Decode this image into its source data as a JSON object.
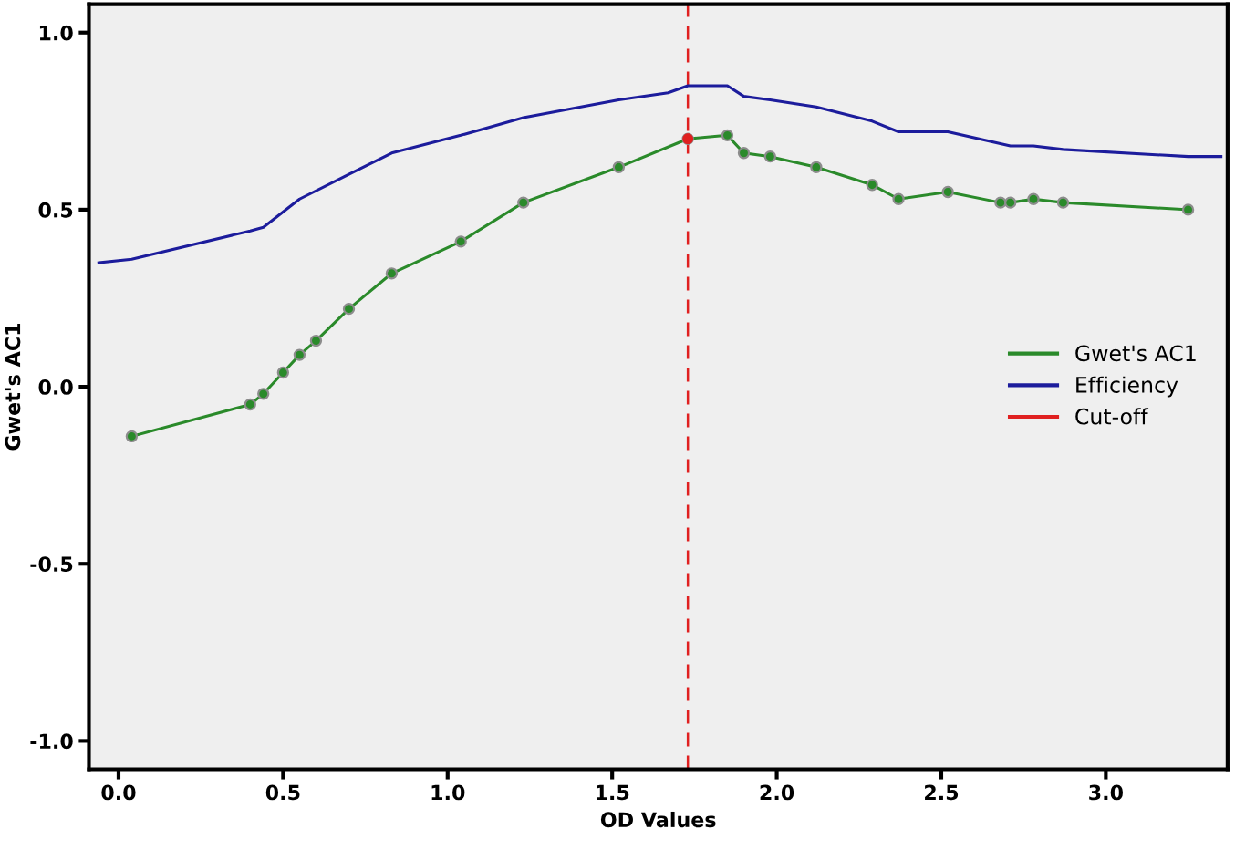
{
  "chart_data": {
    "type": "line",
    "xlabel": "OD Values",
    "ylabel": "Gwet's AC1",
    "xlim": [
      -0.09,
      3.37
    ],
    "ylim": [
      -1.08,
      1.08
    ],
    "xticks": [
      {
        "value": 0,
        "label": "0.0"
      },
      0.5,
      {
        "value": 1,
        "label": "1.0"
      },
      1.5,
      {
        "value": 2,
        "label": "2.0"
      },
      2.5,
      {
        "value": 3,
        "label": "3.0"
      }
    ],
    "yticks": [
      {
        "value": -1,
        "label": "-1.0"
      },
      -0.5,
      {
        "value": 0,
        "label": "0.0"
      },
      0.5,
      {
        "value": 1,
        "label": "1.0"
      }
    ],
    "grid": false,
    "legend": "right",
    "series": [
      {
        "name": "Gwet's AC1",
        "color": "#2a8a2a",
        "marker": "circle",
        "x": [
          0.04,
          0.4,
          0.44,
          0.5,
          0.55,
          0.6,
          0.7,
          0.83,
          1.04,
          1.23,
          1.52,
          1.73,
          1.85,
          1.9,
          1.98,
          2.12,
          2.29,
          2.37,
          2.52,
          2.68,
          2.71,
          2.78,
          2.87,
          3.25
        ],
        "values": [
          -0.14,
          -0.05,
          -0.02,
          0.04,
          0.09,
          0.13,
          0.22,
          0.32,
          0.41,
          0.52,
          0.62,
          0.7,
          0.71,
          0.66,
          0.65,
          0.62,
          0.57,
          0.53,
          0.55,
          0.52,
          0.52,
          0.53,
          0.52,
          0.5
        ]
      },
      {
        "name": "Efficiency",
        "color": "#1c1c9c",
        "marker": "none",
        "x": [
          -0.06,
          0.04,
          0.4,
          0.44,
          0.55,
          0.7,
          0.83,
          1.04,
          1.23,
          1.52,
          1.67,
          1.73,
          1.85,
          1.9,
          1.98,
          2.12,
          2.29,
          2.37,
          2.52,
          2.71,
          2.78,
          2.87,
          3.25,
          3.35
        ],
        "values": [
          0.35,
          0.36,
          0.44,
          0.45,
          0.53,
          0.6,
          0.66,
          0.71,
          0.76,
          0.81,
          0.83,
          0.85,
          0.85,
          0.82,
          0.81,
          0.79,
          0.75,
          0.72,
          0.72,
          0.68,
          0.68,
          0.67,
          0.65,
          0.65
        ]
      },
      {
        "name": "Cut-off",
        "type": "scatter",
        "color": "#e02020",
        "marker": "circle",
        "x": [
          1.73
        ],
        "values": [
          0.7
        ]
      }
    ],
    "ref_lines": [
      {
        "axis": "x",
        "value": 1.73,
        "color": "#e02020",
        "line_style": "dashed"
      }
    ]
  }
}
